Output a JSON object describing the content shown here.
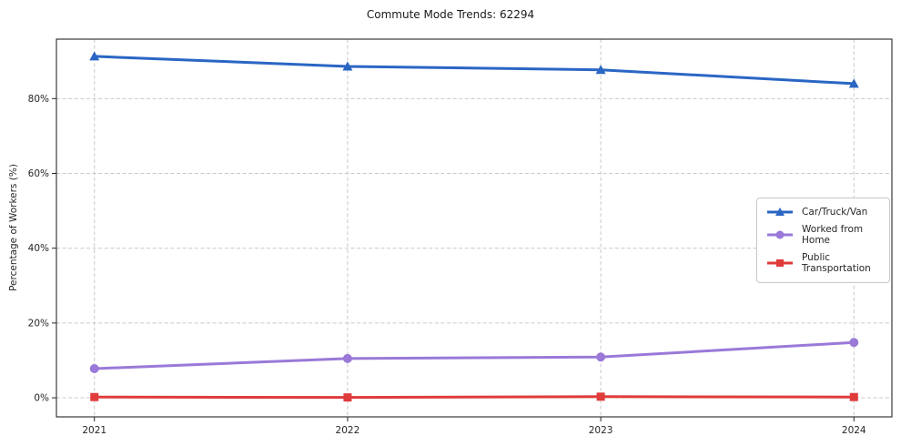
{
  "title": "Commute Mode Trends: 62294",
  "chart_data": {
    "type": "line",
    "title": "Commute Mode Trends: 62294",
    "xlabel": "",
    "ylabel": "Percentage of Workers (%)",
    "x": [
      2021,
      2022,
      2023,
      2024
    ],
    "xtick_labels": [
      "2021",
      "2022",
      "2023",
      "2024"
    ],
    "yticks": [
      0,
      20,
      40,
      60,
      80
    ],
    "ytick_labels": [
      "0%",
      "20%",
      "40%",
      "60%",
      "80%"
    ],
    "xlim": [
      2020.85,
      2024.15
    ],
    "ylim": [
      -5.1,
      95.9
    ],
    "grid": true,
    "grid_style": "dashed",
    "legend_position": "center-right",
    "series": [
      {
        "name": "Car/Truck/Van",
        "values": [
          91.3,
          88.6,
          87.7,
          84.0
        ],
        "color": "#2a66c4",
        "marker": "triangle-up"
      },
      {
        "name": "Worked from Home",
        "values": [
          7.8,
          10.5,
          10.9,
          14.8
        ],
        "color": "#9a79d8",
        "marker": "circle"
      },
      {
        "name": "Public Transportation",
        "values": [
          0.2,
          0.1,
          0.3,
          0.2
        ],
        "color": "#e03b3b",
        "marker": "square"
      }
    ]
  }
}
